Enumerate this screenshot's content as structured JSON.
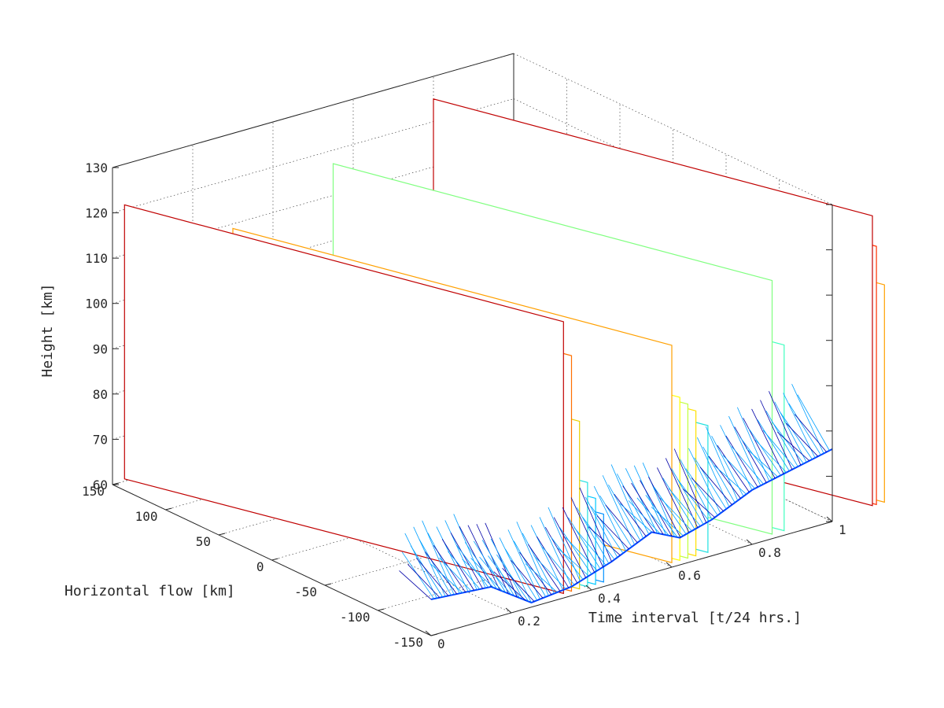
{
  "chart_data": {
    "type": "line",
    "view": "3d-waterfall",
    "title": "",
    "xlabel": "Time interval [t/24 hrs.]",
    "ylabel": "Horizontal flow [km]",
    "zlabel": "Height [km]",
    "xlim": [
      0,
      1
    ],
    "ylim": [
      -150,
      150
    ],
    "zlim": [
      60,
      130
    ],
    "x_ticks": [
      "0",
      "0.2",
      "0.4",
      "0.6",
      "0.8",
      "1"
    ],
    "y_ticks": [
      "-150",
      "-100",
      "-50",
      "0",
      "50",
      "100",
      "150"
    ],
    "z_ticks": [
      "60",
      "70",
      "80",
      "90",
      "100",
      "110",
      "120",
      "130"
    ],
    "grid": true,
    "colormap": [
      "#0000a8",
      "#0040ff",
      "#00a0ff",
      "#20e0e0",
      "#80ff80",
      "#ffff00",
      "#ffa000",
      "#ff3000",
      "#c00000"
    ],
    "features": [
      {
        "t": 0.03,
        "h": 121,
        "color": "#c00000"
      },
      {
        "t": 0.05,
        "h": 113,
        "color": "#ff7000"
      },
      {
        "t": 0.07,
        "h": 98,
        "color": "#e8d000"
      },
      {
        "t": 0.09,
        "h": 84,
        "color": "#20e0e0"
      },
      {
        "t": 0.11,
        "h": 80,
        "color": "#00c8ff"
      },
      {
        "t": 0.13,
        "h": 76,
        "color": "#0090ff"
      },
      {
        "t": 0.3,
        "h": 109,
        "color": "#ffa000"
      },
      {
        "t": 0.32,
        "h": 97,
        "color": "#ffff00"
      },
      {
        "t": 0.34,
        "h": 95,
        "color": "#c0ff40"
      },
      {
        "t": 0.36,
        "h": 93,
        "color": "#ffe000"
      },
      {
        "t": 0.39,
        "h": 89,
        "color": "#20e0e0"
      },
      {
        "t": 0.55,
        "h": 117,
        "color": "#80ff80"
      },
      {
        "t": 0.58,
        "h": 102,
        "color": "#40ffc0"
      },
      {
        "t": 0.8,
        "h": 125,
        "color": "#c00000"
      },
      {
        "t": 0.81,
        "h": 118,
        "color": "#ff3000"
      },
      {
        "t": 0.83,
        "h": 109,
        "color": "#ffa000"
      }
    ],
    "baseline": [
      {
        "t": 0.0,
        "h": 68
      },
      {
        "t": 0.15,
        "h": 67
      },
      {
        "t": 0.25,
        "h": 61
      },
      {
        "t": 0.35,
        "h": 62
      },
      {
        "t": 0.45,
        "h": 65
      },
      {
        "t": 0.55,
        "h": 69
      },
      {
        "t": 0.62,
        "h": 66
      },
      {
        "t": 0.7,
        "h": 68
      },
      {
        "t": 0.8,
        "h": 72
      },
      {
        "t": 0.95,
        "h": 75
      },
      {
        "t": 1.0,
        "h": 76
      }
    ]
  }
}
